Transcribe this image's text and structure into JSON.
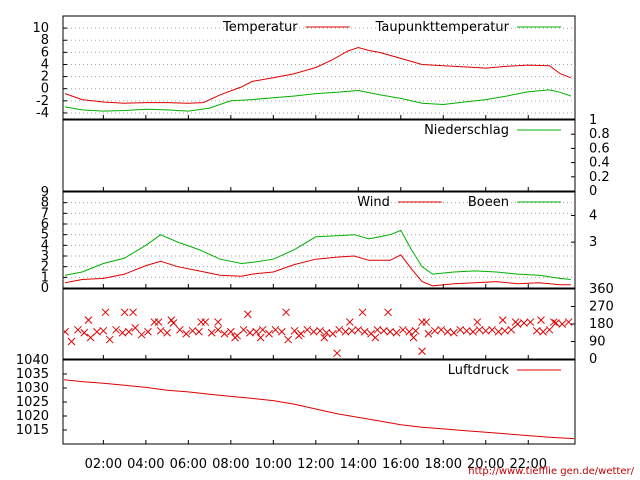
{
  "source_credit": "http://www.tiefflie gen.de/wetter/",
  "colors": {
    "primary": "#e00000",
    "secondary": "#00b000",
    "frame": "#000000",
    "grid": "#a0a0a0"
  },
  "x_axis": {
    "ticks": [
      "02:00",
      "04:00",
      "06:00",
      "08:00",
      "10:00",
      "12:00",
      "14:00",
      "16:00",
      "18:00",
      "20:00",
      "22:00"
    ],
    "xlim": [
      0.1,
      24.2
    ]
  },
  "chart_data": [
    {
      "id": "temperature",
      "type": "line",
      "ylim": [
        -5,
        12
      ],
      "yticks_left": [
        "10",
        "8",
        "6",
        "4",
        "2",
        "0",
        "-2",
        "-4"
      ],
      "ytick_values_left": [
        10,
        8,
        6,
        4,
        2,
        0,
        -2,
        -4
      ],
      "grid": true,
      "legend_position": "top-right",
      "series": [
        {
          "name": "Temperatur",
          "color": "#e00000",
          "x": [
            0.2,
            1.0,
            2.0,
            3.0,
            4.0,
            5.0,
            6.0,
            6.7,
            7.5,
            8.5,
            9.0,
            10.0,
            11.0,
            12.0,
            12.8,
            13.5,
            14.0,
            14.5,
            15.0,
            16.0,
            17.0,
            18.0,
            19.0,
            20.0,
            21.0,
            22.0,
            23.0,
            23.5,
            24.0
          ],
          "y": [
            -0.8,
            -1.8,
            -2.2,
            -2.4,
            -2.3,
            -2.3,
            -2.4,
            -2.3,
            -1.0,
            0.3,
            1.2,
            1.8,
            2.5,
            3.5,
            4.8,
            6.2,
            6.8,
            6.3,
            6.0,
            5.0,
            4.0,
            3.8,
            3.6,
            3.4,
            3.7,
            3.9,
            3.8,
            2.5,
            1.8
          ]
        },
        {
          "name": "Taupunkttemperatur",
          "color": "#00b000",
          "x": [
            0.2,
            1.0,
            2.0,
            3.0,
            4.0,
            5.0,
            6.0,
            7.0,
            8.0,
            9.0,
            10.0,
            11.0,
            12.0,
            13.0,
            14.0,
            15.0,
            16.0,
            17.0,
            18.0,
            19.0,
            20.0,
            21.0,
            22.0,
            23.0,
            23.5,
            24.0
          ],
          "y": [
            -3.0,
            -3.5,
            -3.7,
            -3.6,
            -3.4,
            -3.5,
            -3.7,
            -3.2,
            -2.0,
            -1.8,
            -1.5,
            -1.2,
            -0.8,
            -0.6,
            -0.3,
            -1.0,
            -1.6,
            -2.4,
            -2.6,
            -2.2,
            -1.8,
            -1.2,
            -0.5,
            -0.2,
            -0.6,
            -1.2
          ]
        }
      ]
    },
    {
      "id": "precipitation",
      "type": "line",
      "ylim": [
        0,
        1
      ],
      "yticks_right": [
        "1",
        "0.8",
        "0.6",
        "0.4",
        "0.2",
        "0"
      ],
      "ytick_values_right": [
        1,
        0.8,
        0.6,
        0.4,
        0.2,
        0
      ],
      "legend_position": "top-right",
      "series": [
        {
          "name": "Niederschlag",
          "color": "#00b000",
          "x": [
            0.1,
            24.2
          ],
          "y": [
            0,
            0
          ]
        }
      ]
    },
    {
      "id": "wind",
      "type": "line",
      "ylim": [
        0,
        9
      ],
      "yticks_left": [
        "9",
        "8",
        "7",
        "6",
        "5",
        "4",
        "3",
        "2",
        "1",
        "0"
      ],
      "ytick_values_left": [
        9,
        8,
        7,
        6,
        5,
        4,
        3,
        2,
        1,
        0
      ],
      "yticks_right": [
        "4",
        "3"
      ],
      "ytick_values_right": [
        6.8,
        4.3
      ],
      "grid": true,
      "legend_position": "top-right",
      "series": [
        {
          "name": "Wind",
          "color": "#e00000",
          "x": [
            0.2,
            1.0,
            2.0,
            3.0,
            4.0,
            4.7,
            5.5,
            6.5,
            7.5,
            8.5,
            9.0,
            10.0,
            11.0,
            12.0,
            13.0,
            13.8,
            14.5,
            15.5,
            16.0,
            16.5,
            17.0,
            17.5,
            18.5,
            19.5,
            20.5,
            21.5,
            22.5,
            23.5,
            24.0
          ],
          "y": [
            0.5,
            0.8,
            0.9,
            1.3,
            2.1,
            2.5,
            2.0,
            1.6,
            1.2,
            1.1,
            1.3,
            1.5,
            2.2,
            2.7,
            2.9,
            3.0,
            2.6,
            2.6,
            3.1,
            1.8,
            0.6,
            0.2,
            0.4,
            0.5,
            0.6,
            0.4,
            0.5,
            0.3,
            0.3
          ]
        },
        {
          "name": "Boeen",
          "color": "#00b000",
          "x": [
            0.2,
            1.0,
            2.0,
            3.0,
            4.0,
            4.7,
            5.5,
            6.5,
            7.5,
            8.5,
            9.0,
            10.0,
            11.0,
            12.0,
            13.0,
            13.8,
            14.5,
            15.5,
            16.0,
            16.5,
            17.0,
            17.5,
            18.5,
            19.5,
            20.5,
            21.5,
            22.5,
            23.5,
            24.0
          ],
          "y": [
            1.2,
            1.5,
            2.3,
            2.8,
            4.0,
            5.0,
            4.3,
            3.6,
            2.7,
            2.3,
            2.4,
            2.7,
            3.6,
            4.8,
            4.9,
            5.0,
            4.6,
            5.0,
            5.4,
            3.6,
            2.0,
            1.3,
            1.5,
            1.6,
            1.5,
            1.3,
            1.2,
            0.9,
            0.8
          ]
        }
      ]
    },
    {
      "id": "wind_direction",
      "type": "scatter",
      "ylim": [
        0,
        360
      ],
      "yticks_right": [
        "360",
        "270",
        "180",
        "90",
        "0"
      ],
      "ytick_values_right": [
        360,
        270,
        180,
        90,
        0
      ],
      "marker": "x",
      "series": [
        {
          "color": "#e00000",
          "x": [
            0.2,
            0.5,
            0.8,
            1.1,
            1.4,
            1.7,
            2.0,
            2.3,
            2.6,
            2.9,
            3.2,
            3.5,
            3.8,
            4.1,
            4.4,
            4.7,
            5.0,
            5.3,
            5.6,
            5.9,
            6.2,
            6.5,
            6.8,
            7.1,
            7.4,
            7.7,
            8.0,
            8.3,
            8.6,
            8.9,
            9.2,
            9.5,
            9.8,
            10.1,
            10.4,
            10.7,
            11.0,
            11.3,
            11.6,
            11.9,
            12.2,
            12.5,
            12.8,
            13.1,
            13.4,
            13.7,
            14.0,
            14.3,
            14.6,
            14.9,
            15.2,
            15.5,
            15.8,
            16.1,
            16.4,
            16.7,
            17.0,
            17.3,
            17.6,
            17.9,
            18.2,
            18.5,
            18.8,
            19.1,
            19.4,
            19.7,
            20.0,
            20.3,
            20.6,
            20.9,
            21.2,
            21.5,
            21.8,
            22.1,
            22.4,
            22.7,
            23.0,
            23.3,
            23.6,
            23.9,
            2.1,
            3.4,
            4.6,
            5.2,
            6.6,
            7.4,
            8.8,
            9.4,
            10.6,
            11.2,
            12.4,
            13.6,
            14.2,
            15.4,
            16.6,
            17.2,
            19.6,
            20.8,
            21.4,
            22.6,
            23.2,
            1.3,
            3.0,
            8.2,
            13.0,
            14.8,
            17.0
          ],
          "y": [
            140,
            90,
            150,
            135,
            110,
            140,
            145,
            100,
            150,
            135,
            140,
            160,
            125,
            140,
            190,
            145,
            135,
            185,
            150,
            130,
            145,
            140,
            190,
            135,
            150,
            130,
            140,
            120,
            150,
            135,
            140,
            150,
            130,
            150,
            140,
            100,
            145,
            130,
            150,
            140,
            145,
            135,
            130,
            150,
            140,
            145,
            150,
            140,
            130,
            150,
            145,
            140,
            135,
            150,
            140,
            145,
            40,
            130,
            145,
            150,
            140,
            135,
            150,
            145,
            140,
            150,
            145,
            150,
            140,
            145,
            150,
            180,
            185,
            190,
            145,
            140,
            150,
            185,
            180,
            190,
            240,
            240,
            190,
            200,
            190,
            190,
            230,
            110,
            240,
            120,
            110,
            190,
            240,
            240,
            110,
            190,
            190,
            200,
            190,
            200,
            190,
            200,
            240,
            110,
            30,
            110,
            190
          ]
        }
      ]
    },
    {
      "id": "pressure",
      "type": "line",
      "ylim": [
        1010,
        1040
      ],
      "yticks_left": [
        "1040",
        "1035",
        "1030",
        "1025",
        "1020",
        "1015"
      ],
      "ytick_values_left": [
        1040,
        1035,
        1030,
        1025,
        1020,
        1015
      ],
      "legend_position": "top-right",
      "series": [
        {
          "name": "Luftdruck",
          "color": "#e00000",
          "x": [
            0.1,
            1.0,
            2.0,
            3.0,
            4.0,
            5.0,
            6.0,
            7.0,
            8.0,
            9.0,
            10.0,
            11.0,
            12.0,
            13.0,
            14.0,
            15.0,
            16.0,
            17.0,
            18.0,
            19.0,
            20.0,
            21.0,
            22.0,
            23.0,
            24.2
          ],
          "y": [
            1033,
            1032.3,
            1031.7,
            1031.0,
            1030.2,
            1029.2,
            1028.6,
            1027.8,
            1027.0,
            1026.3,
            1025.5,
            1024.2,
            1022.5,
            1020.8,
            1019.5,
            1018.2,
            1016.9,
            1016.0,
            1015.4,
            1014.8,
            1014.2,
            1013.6,
            1013.0,
            1012.4,
            1011.9
          ]
        }
      ]
    }
  ]
}
